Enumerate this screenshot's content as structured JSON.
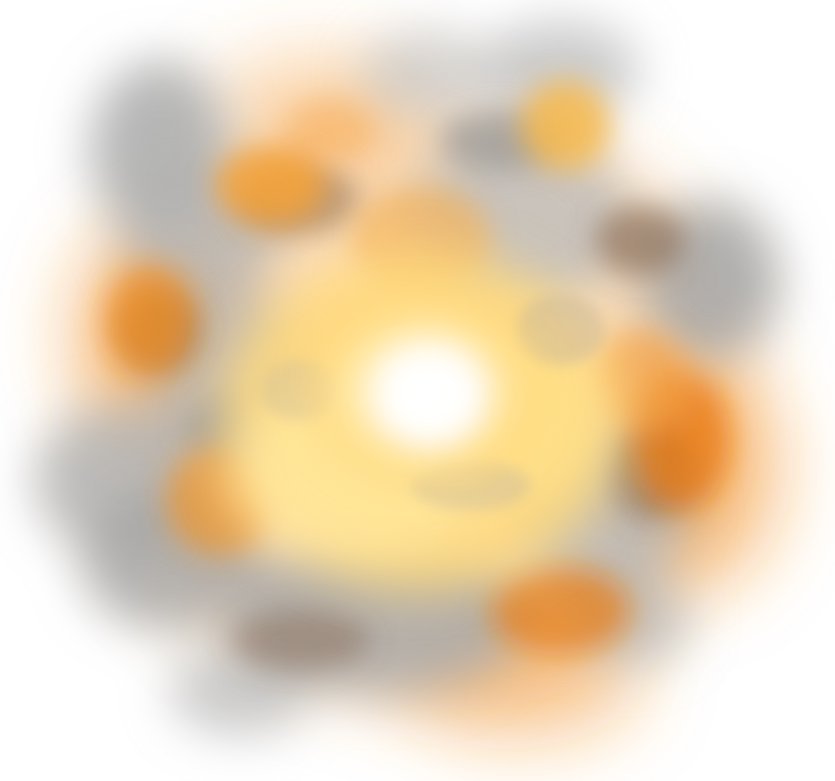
{
  "scene": {
    "subject": "explosion",
    "colors": {
      "background": "#ffffff",
      "core": "#fffaf0",
      "hot_yellow": "#ffe08a",
      "gold": "#f7b84a",
      "orange": "#f08a1c",
      "deep_orange": "#d86a10",
      "ember_brown": "#7a5a40",
      "smoke_light": "#cfcfcf",
      "smoke_mid": "#a9a9a9",
      "smoke_dark": "#8c8c8c"
    }
  }
}
